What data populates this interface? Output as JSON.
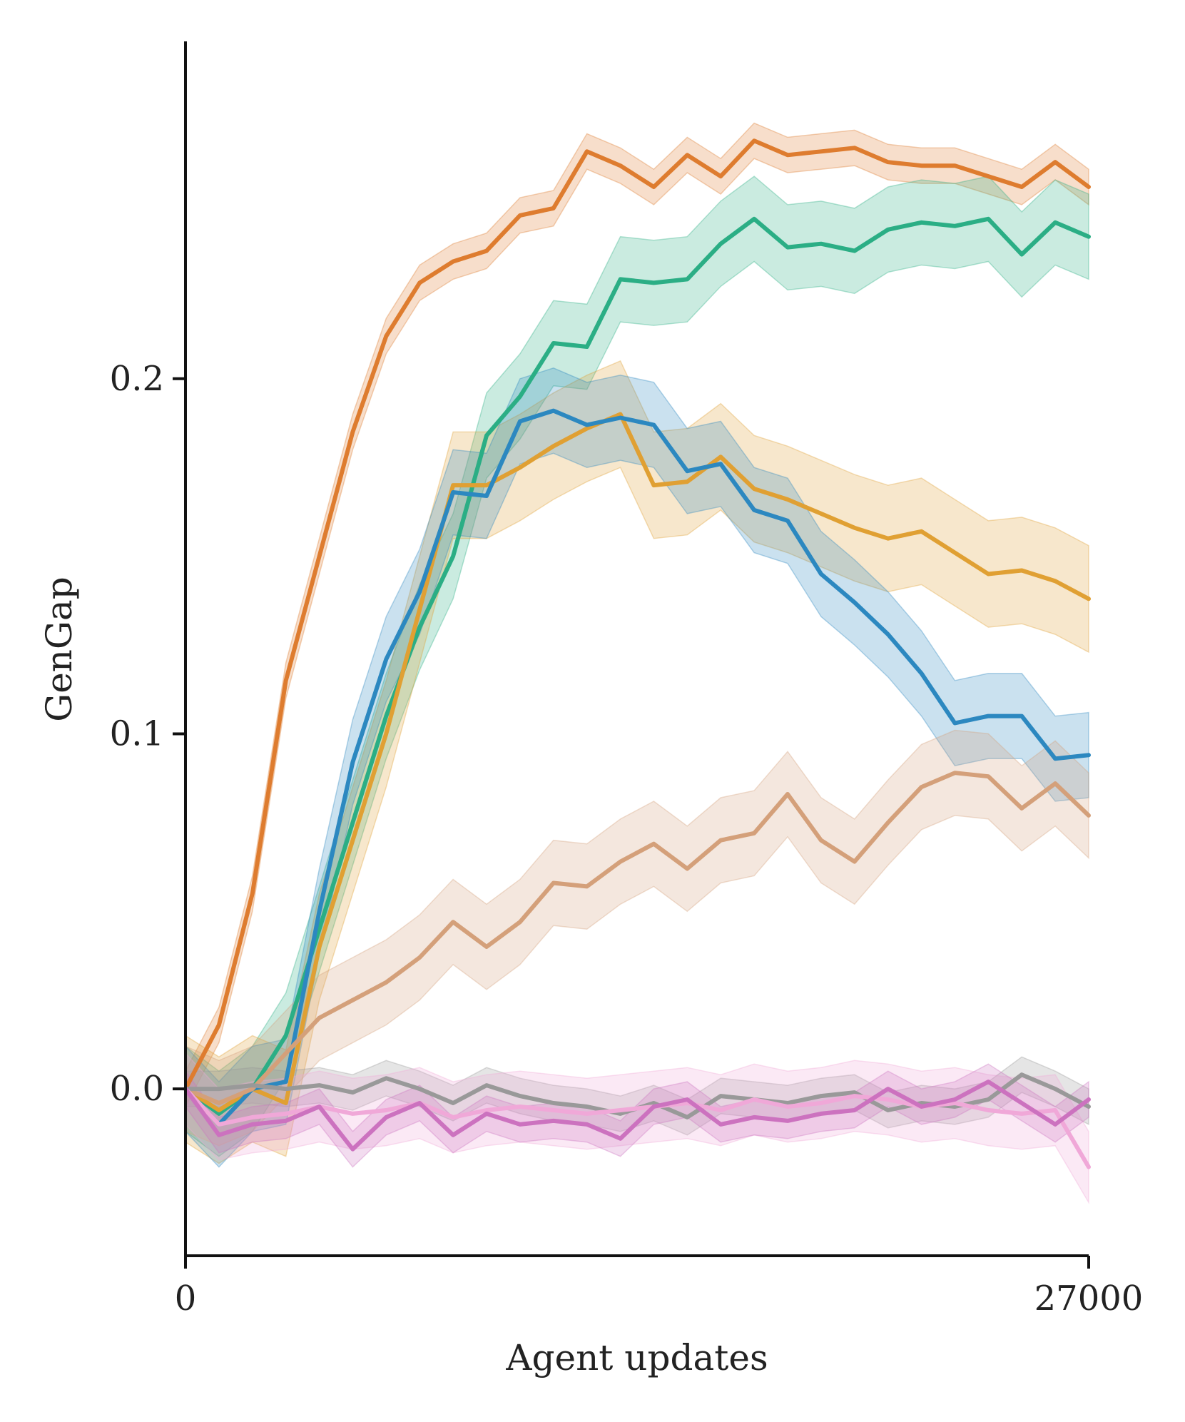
{
  "chart_data": {
    "type": "line",
    "title": "",
    "xlabel": "Agent updates",
    "ylabel": "GenGap",
    "xlim": [
      0,
      27000
    ],
    "ylim": [
      -0.047,
      0.295
    ],
    "x_ticks": [
      {
        "value": 0,
        "label": "0"
      },
      {
        "value": 27000,
        "label": "27000"
      }
    ],
    "y_ticks": [
      {
        "value": 0.0,
        "label": "0.0"
      },
      {
        "value": 0.1,
        "label": "0.1"
      },
      {
        "value": 0.2,
        "label": "0.2"
      }
    ],
    "grid": false,
    "legend": "none",
    "x": [
      0,
      1000,
      2000,
      3000,
      4000,
      5000,
      6000,
      7000,
      8000,
      9000,
      10000,
      11000,
      12000,
      13000,
      14000,
      15000,
      16000,
      17000,
      18000,
      19000,
      20000,
      21000,
      22000,
      23000,
      24000,
      25000,
      26000,
      27000
    ],
    "series": [
      {
        "name": "series-orange",
        "color": "#de7c2f",
        "values": [
          0.0,
          0.018,
          0.055,
          0.115,
          0.15,
          0.185,
          0.212,
          0.227,
          0.233,
          0.236,
          0.246,
          0.248,
          0.264,
          0.26,
          0.254,
          0.263,
          0.257,
          0.267,
          0.263,
          0.264,
          0.265,
          0.261,
          0.26,
          0.26,
          0.257,
          0.254,
          0.261,
          0.254
        ],
        "band": 0.005
      },
      {
        "name": "series-green",
        "color": "#2bae85",
        "values": [
          0.0,
          -0.007,
          0.0,
          0.015,
          0.045,
          0.075,
          0.105,
          0.13,
          0.15,
          0.184,
          0.195,
          0.21,
          0.209,
          0.228,
          0.227,
          0.228,
          0.238,
          0.245,
          0.237,
          0.238,
          0.236,
          0.242,
          0.244,
          0.243,
          0.245,
          0.235,
          0.244,
          0.24
        ],
        "band": 0.012
      },
      {
        "name": "series-yellow",
        "color": "#e0a033",
        "values": [
          0.0,
          -0.006,
          0.0,
          -0.004,
          0.04,
          0.07,
          0.1,
          0.135,
          0.17,
          0.17,
          0.175,
          0.181,
          0.186,
          0.19,
          0.17,
          0.171,
          0.178,
          0.169,
          0.166,
          0.162,
          0.158,
          0.155,
          0.157,
          0.151,
          0.145,
          0.146,
          0.143,
          0.138
        ],
        "band": 0.015
      },
      {
        "name": "series-blue",
        "color": "#2c88c0",
        "values": [
          0.0,
          -0.01,
          0.0,
          0.002,
          0.05,
          0.092,
          0.121,
          0.14,
          0.168,
          0.167,
          0.188,
          0.191,
          0.187,
          0.189,
          0.187,
          0.174,
          0.176,
          0.163,
          0.16,
          0.145,
          0.137,
          0.128,
          0.117,
          0.103,
          0.105,
          0.105,
          0.093,
          0.094
        ],
        "band": 0.012
      },
      {
        "name": "series-tan",
        "color": "#d4a07a",
        "values": [
          0.0,
          -0.004,
          0.0,
          0.01,
          0.02,
          0.025,
          0.03,
          0.037,
          0.047,
          0.04,
          0.047,
          0.058,
          0.057,
          0.064,
          0.069,
          0.062,
          0.07,
          0.072,
          0.083,
          0.07,
          0.064,
          0.075,
          0.085,
          0.089,
          0.088,
          0.079,
          0.086,
          0.077
        ],
        "band": 0.012
      },
      {
        "name": "series-gray",
        "color": "#999999",
        "values": [
          0.0,
          0.0,
          0.001,
          0.0,
          0.001,
          -0.001,
          0.003,
          0.0,
          -0.004,
          0.001,
          -0.002,
          -0.004,
          -0.005,
          -0.007,
          -0.004,
          -0.008,
          -0.002,
          -0.003,
          -0.004,
          -0.002,
          -0.001,
          -0.006,
          -0.004,
          -0.005,
          -0.003,
          0.004,
          0.0,
          -0.005
        ],
        "band": 0.005
      },
      {
        "name": "series-light-pink",
        "color": "#f0a8d8",
        "values": [
          0.0,
          -0.01,
          -0.008,
          -0.007,
          -0.005,
          -0.007,
          -0.006,
          -0.004,
          -0.008,
          -0.006,
          -0.005,
          -0.006,
          -0.007,
          -0.006,
          -0.005,
          -0.004,
          -0.006,
          -0.003,
          -0.005,
          -0.004,
          -0.002,
          -0.003,
          -0.005,
          -0.004,
          -0.006,
          -0.007,
          -0.006,
          -0.022
        ],
        "band": 0.01
      },
      {
        "name": "series-pink",
        "color": "#cc72bf",
        "values": [
          0.0,
          -0.013,
          -0.01,
          -0.009,
          -0.005,
          -0.017,
          -0.008,
          -0.004,
          -0.013,
          -0.007,
          -0.01,
          -0.009,
          -0.01,
          -0.014,
          -0.005,
          -0.003,
          -0.01,
          -0.008,
          -0.009,
          -0.007,
          -0.006,
          0.0,
          -0.005,
          -0.003,
          0.002,
          -0.004,
          -0.01,
          -0.003
        ],
        "band": 0.005
      }
    ]
  }
}
